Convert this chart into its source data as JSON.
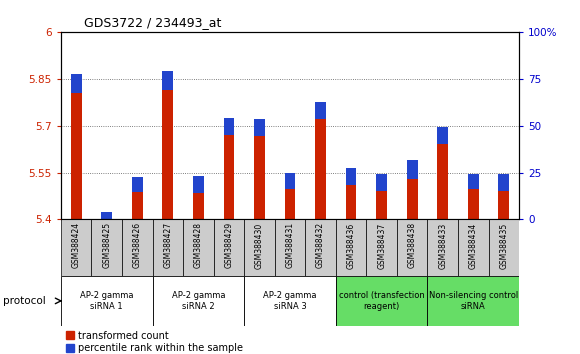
{
  "title": "GDS3722 / 234493_at",
  "samples": [
    "GSM388424",
    "GSM388425",
    "GSM388426",
    "GSM388427",
    "GSM388428",
    "GSM388429",
    "GSM388430",
    "GSM388431",
    "GSM388432",
    "GSM388436",
    "GSM388437",
    "GSM388438",
    "GSM388433",
    "GSM388434",
    "GSM388435"
  ],
  "transformed_count": [
    5.865,
    5.425,
    5.535,
    5.875,
    5.54,
    5.725,
    5.72,
    5.55,
    5.775,
    5.565,
    5.545,
    5.59,
    5.695,
    5.545,
    5.545
  ],
  "percentile_rank_pct": [
    10,
    6,
    8,
    10,
    9,
    9,
    9,
    9,
    9,
    9,
    9,
    10,
    9,
    8,
    9
  ],
  "bar_bottom": 5.4,
  "ylim_left": [
    5.4,
    6.0
  ],
  "ylim_right": [
    0,
    100
  ],
  "yticks_left": [
    5.4,
    5.55,
    5.7,
    5.85,
    6.0
  ],
  "ytick_labels_left": [
    "5.4",
    "5.55",
    "5.7",
    "5.85",
    "6"
  ],
  "yticks_right": [
    0,
    25,
    50,
    75,
    100
  ],
  "ytick_labels_right": [
    "0",
    "25",
    "50",
    "75",
    "100%"
  ],
  "groups": [
    {
      "label": "AP-2 gamma\nsiRNA 1",
      "indices": [
        0,
        1,
        2
      ],
      "color": "#ffffff"
    },
    {
      "label": "AP-2 gamma\nsiRNA 2",
      "indices": [
        3,
        4,
        5
      ],
      "color": "#ffffff"
    },
    {
      "label": "AP-2 gamma\nsiRNA 3",
      "indices": [
        6,
        7,
        8
      ],
      "color": "#ffffff"
    },
    {
      "label": "control (transfection\nreagent)",
      "indices": [
        9,
        10,
        11
      ],
      "color": "#66dd66"
    },
    {
      "label": "Non-silencing control\nsiRNA",
      "indices": [
        12,
        13,
        14
      ],
      "color": "#66dd66"
    }
  ],
  "bar_color_red": "#cc2200",
  "bar_color_blue": "#2244cc",
  "bar_width": 0.35,
  "legend_red": "transformed count",
  "legend_blue": "percentile rank within the sample",
  "protocol_label": "protocol",
  "tick_color_left": "#cc2200",
  "tick_color_right": "#0000cc",
  "grid_color": "#555555",
  "bg_color": "#ffffff",
  "xtick_bg": "#cccccc",
  "group_border_color": "#555555"
}
